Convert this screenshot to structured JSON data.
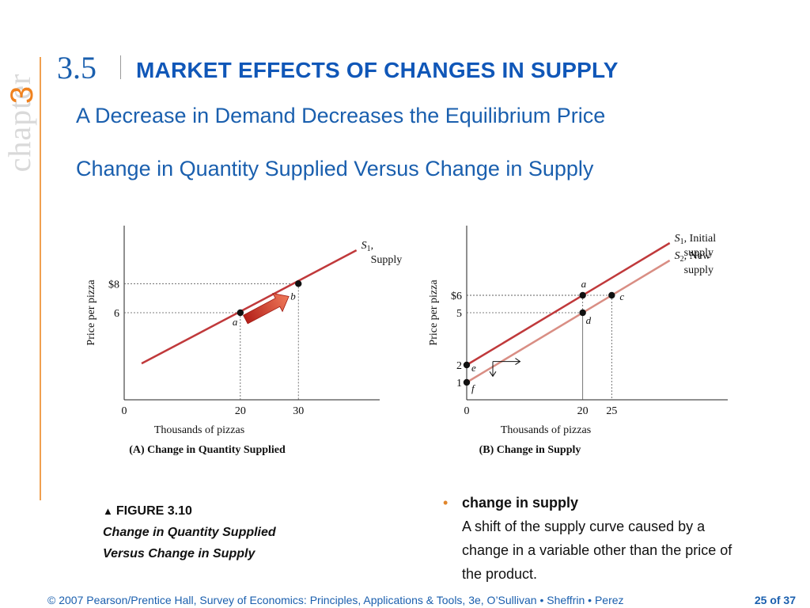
{
  "sidebar": {
    "chapter_word": "chapter",
    "chapter_number": "3"
  },
  "header": {
    "section_number": "3.5",
    "section_title": "MARKET EFFECTS OF CHANGES IN SUPPLY",
    "subtitle_1": "A Decrease in Demand Decreases the Equilibrium Price",
    "subtitle_2": "Change in Quantity Supplied Versus Change in Supply"
  },
  "colors": {
    "supply_line": "#c0393b",
    "new_supply_line": "#d98e84",
    "accent_arrow": "#d93a2a",
    "title_blue": "#1057b8"
  },
  "figure": {
    "caption_label": "FIGURE 3.10",
    "caption_title_1": "Change in Quantity Supplied",
    "caption_title_2": "Versus Change in Supply"
  },
  "chart_data": [
    {
      "type": "line",
      "title": "(A) Change in Quantity Supplied",
      "xlabel": "Thousands of pizzas",
      "ylabel": "Price per pizza",
      "x_ticks": [
        "0",
        "20",
        "30"
      ],
      "y_ticks": [
        "$8",
        "6"
      ],
      "xlim": [
        0,
        44
      ],
      "ylim": [
        0,
        12
      ],
      "series": [
        {
          "name": "S1, Supply",
          "label_main": "S",
          "label_sub": "1",
          "label_rest": ",",
          "label_line2": "Supply",
          "points": [
            [
              3,
              2.5
            ],
            [
              40,
              10.3
            ]
          ]
        }
      ],
      "points": [
        {
          "label": "a",
          "x": 20,
          "y": 6
        },
        {
          "label": "b",
          "x": 30,
          "y": 8
        }
      ]
    },
    {
      "type": "line",
      "title": "(B) Change in Supply",
      "xlabel": "Thousands of pizzas",
      "ylabel": "Price per pizza",
      "x_ticks": [
        "0",
        "20",
        "25"
      ],
      "y_ticks": [
        "$6",
        "5",
        "2",
        "1"
      ],
      "xlim": [
        0,
        45
      ],
      "ylim": [
        0,
        10
      ],
      "series": [
        {
          "name": "S1, Initial supply",
          "label_main": "S",
          "label_sub": "1",
          "label_rest": ", Initial",
          "label_line2": "supply",
          "points": [
            [
              0,
              2
            ],
            [
              35,
              9
            ]
          ]
        },
        {
          "name": "S2, New supply",
          "label_main": "S",
          "label_sub": "2",
          "label_rest": ", New",
          "label_line2": "supply",
          "points": [
            [
              0,
              1
            ],
            [
              35,
              8
            ]
          ]
        }
      ],
      "points": [
        {
          "label": "a",
          "x": 20,
          "y": 6
        },
        {
          "label": "c",
          "x": 25,
          "y": 6
        },
        {
          "label": "d",
          "x": 20,
          "y": 5
        },
        {
          "label": "e",
          "x": 0,
          "y": 2
        },
        {
          "label": "f",
          "x": 0,
          "y": 1
        }
      ]
    }
  ],
  "definition": {
    "term": "change in supply",
    "text": "A shift of the supply curve caused by a change in a variable other than the price of the product."
  },
  "footer": {
    "copyright": "© 2007 Pearson/Prentice Hall, Survey of Economics: Principles, Applications & Tools, 3e, O’Sullivan • Sheffrin • Perez",
    "page": "25 of 37"
  }
}
